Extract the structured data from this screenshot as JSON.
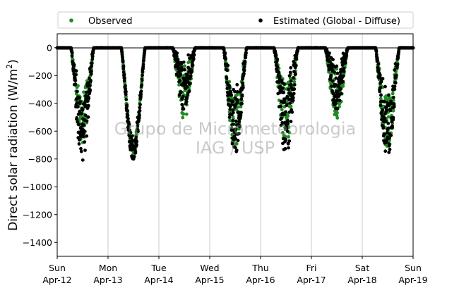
{
  "chart_data": {
    "type": "scatter",
    "title": "",
    "ylabel_main": "Direct solar radiation (W/m",
    "ylabel_sup": "2",
    "ylabel_close": ")",
    "xlabel": "",
    "xlim_days": [
      0,
      7
    ],
    "ylim": [
      -1500,
      100
    ],
    "y_ticks": [
      0,
      -200,
      -400,
      -600,
      -800,
      -1000,
      -1200,
      -1400
    ],
    "x_ticks": [
      {
        "day": "Sun",
        "date": "Apr-12"
      },
      {
        "day": "Mon",
        "date": "Apr-13"
      },
      {
        "day": "Tue",
        "date": "Apr-14"
      },
      {
        "day": "Wed",
        "date": "Apr-15"
      },
      {
        "day": "Thu",
        "date": "Apr-16"
      },
      {
        "day": "Fri",
        "date": "Apr-17"
      },
      {
        "day": "Sat",
        "date": "Apr-18"
      },
      {
        "day": "Sun",
        "date": "Apr-19"
      }
    ],
    "grid_x": true,
    "grid_y": false,
    "legend_placement": "top, above plot",
    "series": [
      {
        "name": "Observed",
        "color": "#228b22"
      },
      {
        "name": "Estimated (Global - Diffuse)",
        "color": "#000000"
      }
    ],
    "daily_minimum_approx": [
      {
        "date": "Apr-12",
        "observed": -700,
        "estimated": -810
      },
      {
        "date": "Apr-13",
        "observed": -770,
        "estimated": -800
      },
      {
        "date": "Apr-14",
        "observed": -520,
        "estimated": -480
      },
      {
        "date": "Apr-15",
        "observed": -750,
        "estimated": -760
      },
      {
        "date": "Apr-16",
        "observed": -700,
        "estimated": -770
      },
      {
        "date": "Apr-17",
        "observed": -530,
        "estimated": -440
      },
      {
        "date": "Apr-18",
        "observed": -760,
        "estimated": -780
      }
    ]
  },
  "watermark": {
    "line1": "Grupo de Micrometeorologia",
    "line2": "IAG / USP"
  }
}
